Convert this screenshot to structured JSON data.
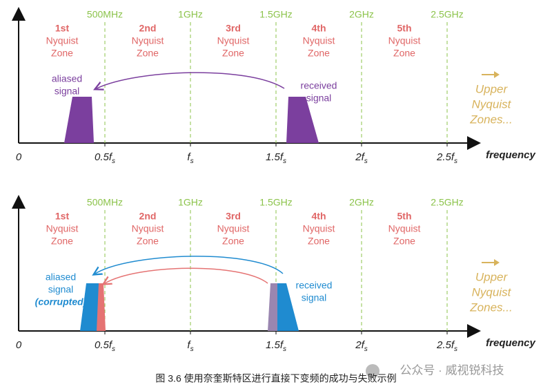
{
  "panels": [
    {
      "frequency_labels": [
        "500MHz",
        "1GHz",
        "1.5GHz",
        "2GHz",
        "2.5GHz"
      ],
      "zones": [
        [
          "1st",
          "Nyquist",
          "Zone"
        ],
        [
          "2nd",
          "Nyquist",
          "Zone"
        ],
        [
          "3rd",
          "Nyquist",
          "Zone"
        ],
        [
          "4th",
          "Nyquist",
          "Zone"
        ],
        [
          "5th",
          "Nyquist",
          "Zone"
        ]
      ],
      "axis_ticks": [
        {
          "main": "0"
        },
        {
          "main": "0.5f",
          "sub": "s"
        },
        {
          "main": "f",
          "sub": "s"
        },
        {
          "main": "1.5f",
          "sub": "s"
        },
        {
          "main": "2f",
          "sub": "s"
        },
        {
          "main": "2.5f",
          "sub": "s"
        }
      ],
      "axis_label": "frequency",
      "aliased_label": [
        "aliased",
        "signal"
      ],
      "received_label": [
        "received",
        "signal"
      ],
      "upper_label": [
        "Upper",
        "Nyquist",
        "Zones..."
      ]
    },
    {
      "frequency_labels": [
        "500MHz",
        "1GHz",
        "1.5GHz",
        "2GHz",
        "2.5GHz"
      ],
      "zones": [
        [
          "1st",
          "Nyquist",
          "Zone"
        ],
        [
          "2nd",
          "Nyquist",
          "Zone"
        ],
        [
          "3rd",
          "Nyquist",
          "Zone"
        ],
        [
          "4th",
          "Nyquist",
          "Zone"
        ],
        [
          "5th",
          "Nyquist",
          "Zone"
        ]
      ],
      "axis_ticks": [
        {
          "main": "0"
        },
        {
          "main": "0.5f",
          "sub": "s"
        },
        {
          "main": "f",
          "sub": "s"
        },
        {
          "main": "1.5f",
          "sub": "s"
        },
        {
          "main": "2f",
          "sub": "s"
        },
        {
          "main": "2.5f",
          "sub": "s"
        }
      ],
      "axis_label": "frequency",
      "aliased_label": [
        "aliased",
        "signal",
        "(corrupted)"
      ],
      "received_label": [
        "received",
        "signal"
      ],
      "upper_label": [
        "Upper",
        "Nyquist",
        "Zones..."
      ]
    }
  ],
  "watermark": "公众号 · 威视锐科技",
  "caption": "图 3.6 使用奈奎斯特区进行直接下变频的成功与失败示例"
}
